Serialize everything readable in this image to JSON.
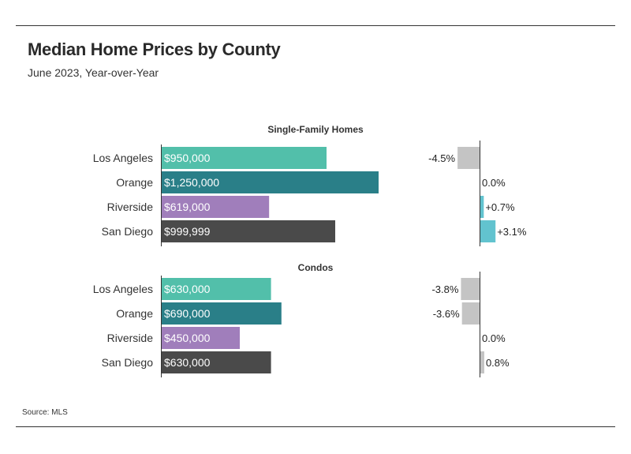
{
  "header": {
    "title": "Median Home Prices by County",
    "subtitle": "June 2023, Year-over-Year"
  },
  "footer": {
    "source": "Source: MLS"
  },
  "colors": {
    "Los Angeles": "#52bfaa",
    "Orange": "#2a7f88",
    "Riverside": "#a07ebb",
    "San Diego": "#4a4a4a",
    "negative_change": "#c4c4c4",
    "positive_change": "#62c3cf",
    "neutral_change": "#c4c4c4"
  },
  "chart_data": [
    {
      "type": "bar",
      "title": "Single-Family Homes",
      "measure": "median_price",
      "categories": [
        "Los Angeles",
        "Orange",
        "Riverside",
        "San Diego"
      ],
      "values": [
        950000,
        1250000,
        619000,
        999999
      ],
      "value_labels": [
        "$950,000",
        "$1,250,000",
        "$619,000",
        "$999,999"
      ],
      "yoy_change_pct": [
        -4.5,
        0.0,
        0.7,
        3.1
      ],
      "yoy_labels": [
        "-4.5%",
        "0.0%",
        "+0.7%",
        "+3.1%"
      ]
    },
    {
      "type": "bar",
      "title": "Condos",
      "measure": "median_price",
      "categories": [
        "Los Angeles",
        "Orange",
        "Riverside",
        "San Diego"
      ],
      "values": [
        630000,
        690000,
        450000,
        630000
      ],
      "value_labels": [
        "$630,000",
        "$690,000",
        "$450,000",
        "$630,000"
      ],
      "yoy_change_pct": [
        -3.8,
        -3.6,
        0.0,
        0.8
      ],
      "yoy_labels": [
        "-3.8%",
        "-3.6%",
        "0.0%",
        "0.8%"
      ]
    }
  ]
}
